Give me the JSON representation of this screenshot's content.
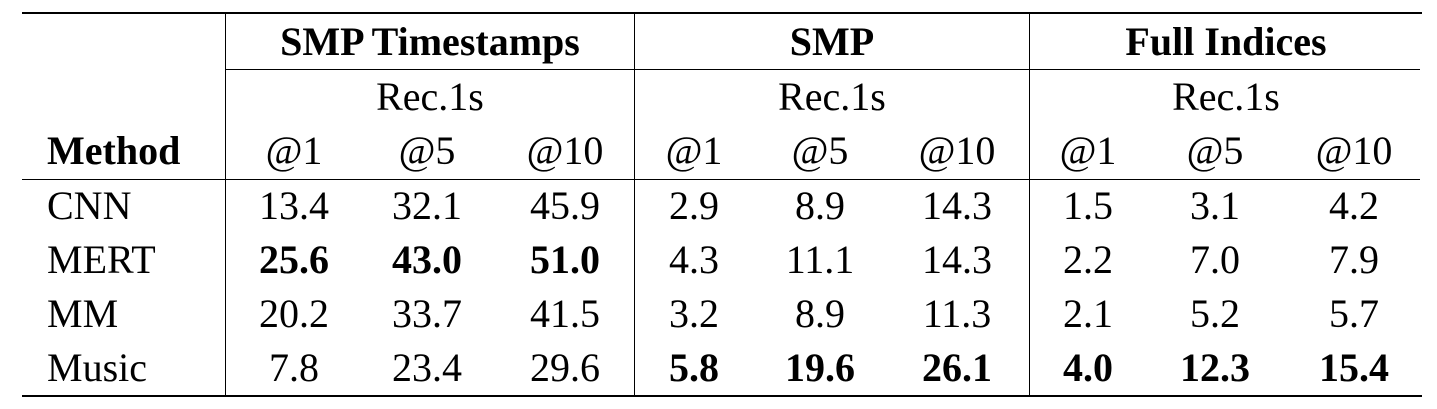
{
  "header": {
    "groups": [
      "SMP Timestamps",
      "SMP",
      "Full Indices"
    ],
    "metric": "Rec.1s",
    "method_label": "Method",
    "ks": [
      "@1",
      "@5",
      "@10"
    ]
  },
  "rows": [
    {
      "method": "CNN",
      "values": [
        "13.4",
        "32.1",
        "45.9",
        "2.9",
        "8.9",
        "14.3",
        "1.5",
        "3.1",
        "4.2"
      ]
    },
    {
      "method": "MERT",
      "values": [
        "25.6",
        "43.0",
        "51.0",
        "4.3",
        "11.1",
        "14.3",
        "2.2",
        "7.0",
        "7.9"
      ]
    },
    {
      "method": "MM",
      "values": [
        "20.2",
        "33.7",
        "41.5",
        "3.2",
        "8.9",
        "11.3",
        "2.1",
        "5.2",
        "5.7"
      ]
    },
    {
      "method": "Music",
      "values": [
        "7.8",
        "23.4",
        "29.6",
        "5.8",
        "19.6",
        "26.1",
        "4.0",
        "12.3",
        "15.4"
      ]
    }
  ],
  "bold_cells": [
    [
      1,
      0
    ],
    [
      1,
      1
    ],
    [
      1,
      2
    ],
    [
      3,
      3
    ],
    [
      3,
      4
    ],
    [
      3,
      5
    ],
    [
      3,
      6
    ],
    [
      3,
      7
    ],
    [
      3,
      8
    ]
  ]
}
